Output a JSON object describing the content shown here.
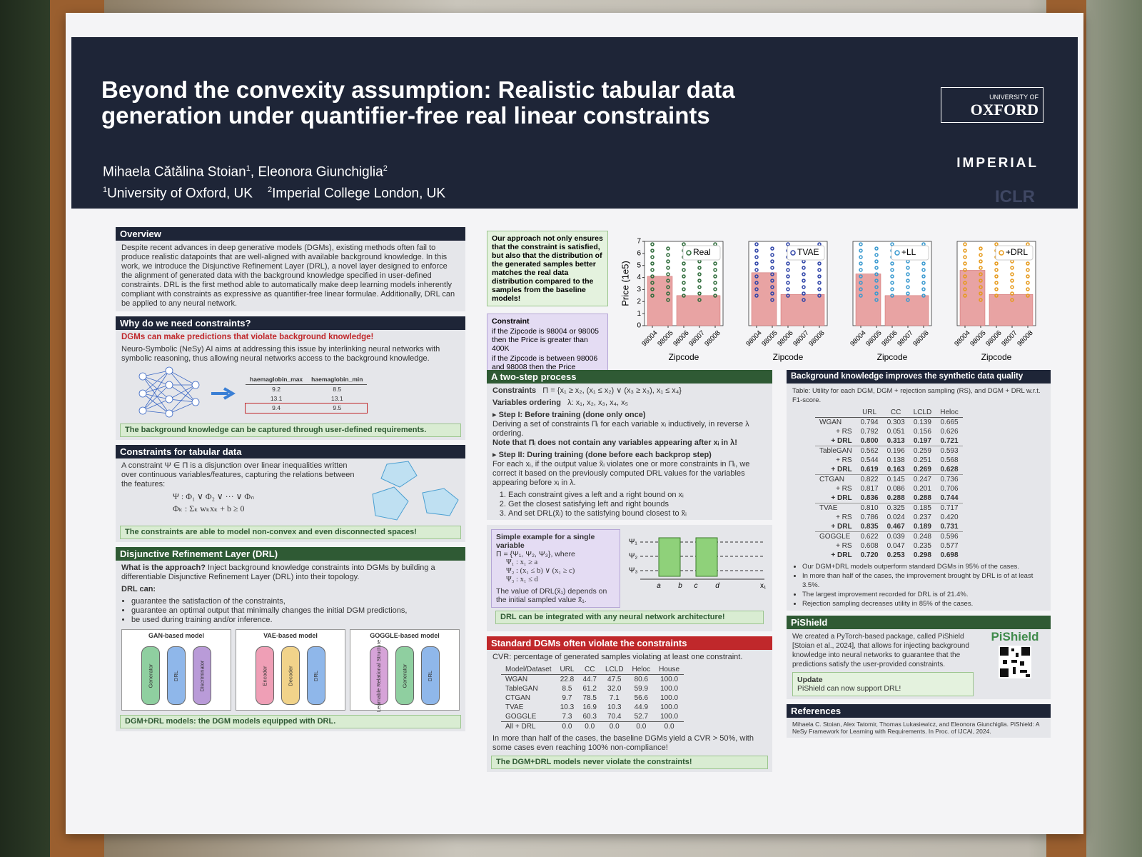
{
  "header": {
    "title": [
      "Beyond the convexity assumption: Realistic tabular data",
      "generation under quantifier-free real linear constraints"
    ],
    "authors": [
      {
        "name": "Mihaela Cătălina Stoian",
        "affil": 1
      },
      {
        "name": "Eleonora Giunchiglia",
        "affil": 2
      }
    ],
    "affiliations": [
      {
        "id": 1,
        "name": "University of Oxford, UK"
      },
      {
        "id": 2,
        "name": "Imperial College London, UK"
      }
    ],
    "logos": {
      "oxford_small": "UNIVERSITY OF",
      "oxford": "OXFORD",
      "imperial": "IMPERIAL",
      "iclr": "ICLR"
    }
  },
  "overview": {
    "heading": "Overview",
    "text": "Despite recent advances in deep generative models (DGMs), existing methods often fail to produce realistic datapoints that are well-aligned with available background knowledge. In this work, we introduce the Disjunctive Refinement Layer (DRL), a novel layer designed to enforce the alignment of generated data with the background knowledge specified in user-defined constraints. DRL is the first method able to automatically make deep learning models inherently compliant with constraints as expressive as quantifier-free linear formulae. Additionally, DRL can be applied to any neural network."
  },
  "why": {
    "heading": "Why do we need constraints?",
    "highlight": "DGMs can make predictions that violate background knowledge!",
    "text": "Neuro-Symbolic (NeSy) AI aims at addressing this issue by interlinking neural networks with symbolic reasoning, thus allowing neural networks access to the background knowledge.",
    "table": {
      "columns": [
        "haemaglobin_max",
        "haemaglobin_min"
      ],
      "rows": [
        [
          "9.2",
          "8.5"
        ],
        [
          "13.1",
          "13.1"
        ],
        [
          "9.4",
          "9.5"
        ]
      ]
    },
    "note": "The background knowledge can be captured through user-defined requirements."
  },
  "constraints": {
    "heading": "Constraints for tabular data",
    "text": "A constraint Ψ ∈ Π is a disjunction over linear inequalities written over continuous variables/features, capturing the relations between the features:",
    "formulas": [
      "Ψ : Φ₁ ∨ Φ₂ ∨ ··· ∨ Φₙ",
      "Φₖ : Σₖ wₖxₖ + b ≥ 0"
    ],
    "note": "The constraints are able to model non-convex and even disconnected spaces!"
  },
  "drl": {
    "heading": "Disjunctive Refinement Layer (DRL)",
    "question": "What is the approach?",
    "text": "Inject background knowledge constraints into DGMs by building a differentiable Disjunctive Refinement Layer (DRL) into their topology.",
    "can": "DRL can:",
    "bullets": [
      "guarantee the satisfaction of the constraints,",
      "guarantee an optimal output that minimally changes the initial DGM predictions,",
      "be used during training and/or inference."
    ],
    "models": [
      {
        "title": "GAN-based model",
        "blocks": [
          "Generator",
          "DRL",
          "Discriminator"
        ],
        "colors": [
          "#8fcfa0",
          "#8fb7ea",
          "#b99bd8"
        ]
      },
      {
        "title": "VAE-based model",
        "blocks": [
          "Encoder",
          "Decoder",
          "DRL"
        ],
        "colors": [
          "#ef9fb6",
          "#f1d38a",
          "#8fb7ea"
        ]
      },
      {
        "title": "GOGGLE-based model",
        "blocks": [
          "Learnable Relational Structure",
          "Generator",
          "DRL"
        ],
        "colors": [
          "#d6a3d8",
          "#8fcfa0",
          "#8fb7ea"
        ]
      }
    ],
    "note": "DGM+DRL models: the DGM models equipped with DRL."
  },
  "callout": "Our approach not only ensures that the constraint is satisfied, but also that the distribution of the generated samples better matches the real data distribution compared to the samples from the baseline models!",
  "constraint_box": {
    "title": "Constraint",
    "bullets": [
      "if the Zipcode is 98004 or 98005 then the Price is greater than 400K",
      "if the Zipcode is between 98006 and 98008 then the Price exceeds 225K USD."
    ]
  },
  "charts": {
    "ylabel": "Price (1e5)",
    "xlabel": "Zipcode",
    "yticks": [
      0,
      1,
      2,
      3,
      4,
      5,
      6,
      7
    ],
    "zipcodes": [
      "98004",
      "98005",
      "98006",
      "98007",
      "98008"
    ],
    "bar_color": "#e8a3a3",
    "panels": [
      {
        "name": "Real",
        "color": "#2e6b3a",
        "bars": [
          4.1,
          2.5
        ]
      },
      {
        "name": "TVAE",
        "color": "#2f44a8",
        "bars": [
          4.4,
          2.6
        ]
      },
      {
        "name": "+LL",
        "color": "#3a9ad0",
        "bars": [
          4.3,
          2.5
        ]
      },
      {
        "name": "+DRL",
        "color": "#e69a1c",
        "bars": [
          4.6,
          2.6
        ]
      }
    ]
  },
  "two_step": {
    "heading": "A two-step process",
    "constraints_label": "Constraints",
    "constraints": "Π = {x₁ ≥ x₂, (x₁ ≤ x₂) ∨ (x₃ ≥ x₃), x₁ ≤ x₄}",
    "ordering_label": "Variables ordering",
    "ordering": "λ: x₁, x₂, x₃, x₄, x₅",
    "step1_title": "Step I: Before training (done only once)",
    "step1_text": "Deriving a set of constraints Πᵢ for each variable xᵢ inductively, in reverse λ ordering.",
    "step1_note": "Note that Πᵢ does not contain any variables appearing after xᵢ in λ!",
    "step2_title": "Step II: During training (done before each backprop step)",
    "step2_text": "For each xᵢ, if the output value x̃ᵢ violates one or more constraints in Πᵢ, we correct it based on the previously computed DRL values for the variables appearing before xᵢ in λ.",
    "steps": [
      "Each constraint gives a left and a right bound on xᵢ",
      "Get the closest satisfying left and right bounds",
      "And set DRL(x̃ᵢ) to the satisfying bound closest to x̃ᵢ"
    ]
  },
  "example": {
    "title": "Simple example for a single variable",
    "lines": [
      "Π = {Ψ₁, Ψ₂, Ψ₃}, where",
      "Ψ₁ : x₁ ≥ a",
      "Ψ₂ : (x₁ ≤ b) ∨ (x₁ ≥ c)",
      "Ψ₃ : x₁ ≤ d"
    ],
    "text": "The value of DRL(x̃₁) depends on the initial sampled value x̃₁.",
    "psi": [
      "Ψ₁",
      "Ψ₂",
      "Ψ₃"
    ],
    "points": [
      "a",
      "b",
      "c",
      "d"
    ],
    "axis": "x₁",
    "note": "DRL can be integrated with any neural network architecture!"
  },
  "cvr": {
    "heading": "Standard DGMs often violate the constraints",
    "caption": "CVR: percentage of generated samples violating at least one constraint.",
    "columns": [
      "Model/Dataset",
      "URL",
      "CC",
      "LCLD",
      "Heloc",
      "House"
    ],
    "rows": [
      [
        "WGAN",
        "22.8",
        "44.7",
        "47.5",
        "80.6",
        "100.0"
      ],
      [
        "TableGAN",
        "8.5",
        "61.2",
        "32.0",
        "59.9",
        "100.0"
      ],
      [
        "CTGAN",
        "9.7",
        "78.5",
        "7.1",
        "56.6",
        "100.0"
      ],
      [
        "TVAE",
        "10.3",
        "16.9",
        "10.3",
        "44.9",
        "100.0"
      ],
      [
        "GOGGLE",
        "7.3",
        "60.3",
        "70.4",
        "52.7",
        "100.0"
      ],
      [
        "All + DRL",
        "0.0",
        "0.0",
        "0.0",
        "0.0",
        "0.0"
      ]
    ],
    "text": "In more than half of the cases, the baseline DGMs yield a CVR > 50%, with some cases even reaching 100% non-compliance!",
    "note": "The DGM+DRL models never violate the constraints!"
  },
  "utility": {
    "heading": "Background knowledge improves the synthetic data quality",
    "caption": "Table: Utility for each DGM, DGM + rejection sampling (RS), and DGM + DRL w.r.t. F1-score.",
    "columns": [
      "URL",
      "CC",
      "LCLD",
      "Heloc"
    ],
    "rows": [
      [
        "WGAN",
        "0.794",
        "0.303",
        "0.139",
        "0.665"
      ],
      [
        "+ RS",
        "0.792",
        "0.051",
        "0.156",
        "0.626"
      ],
      [
        "+ DRL",
        "0.800",
        "0.313",
        "0.197",
        "0.721"
      ],
      [
        "TableGAN",
        "0.562",
        "0.196",
        "0.259",
        "0.593"
      ],
      [
        "+ RS",
        "0.544",
        "0.138",
        "0.251",
        "0.568"
      ],
      [
        "+ DRL",
        "0.619",
        "0.163",
        "0.269",
        "0.628"
      ],
      [
        "CTGAN",
        "0.822",
        "0.145",
        "0.247",
        "0.736"
      ],
      [
        "+ RS",
        "0.817",
        "0.086",
        "0.201",
        "0.706"
      ],
      [
        "+ DRL",
        "0.836",
        "0.288",
        "0.288",
        "0.744"
      ],
      [
        "TVAE",
        "0.810",
        "0.325",
        "0.185",
        "0.717"
      ],
      [
        "+ RS",
        "0.786",
        "0.024",
        "0.237",
        "0.420"
      ],
      [
        "+ DRL",
        "0.835",
        "0.467",
        "0.189",
        "0.731"
      ],
      [
        "GOGGLE",
        "0.622",
        "0.039",
        "0.248",
        "0.596"
      ],
      [
        "+ RS",
        "0.608",
        "0.047",
        "0.235",
        "0.577"
      ],
      [
        "+ DRL",
        "0.720",
        "0.253",
        "0.298",
        "0.698"
      ]
    ],
    "bullets": [
      "Our DGM+DRL models outperform standard DGMs in 95% of the cases.",
      "In more than half of the cases, the improvement brought by DRL is of at least 3.5%.",
      "The largest improvement recorded for DRL is of 21.4%.",
      "Rejection sampling decreases utility in 85% of the cases."
    ]
  },
  "pishield": {
    "heading": "PiShield",
    "text": "We created a PyTorch-based package, called PiShield [Stoian et al., 2024], that allows for injecting background knowledge into neural networks to guarantee that the predictions satisfy the user-provided constraints.",
    "logo": "PiShield",
    "update_title": "Update",
    "update_text": "PiShield can now support DRL!"
  },
  "references": {
    "heading": "References",
    "text": "Mihaela C. Stoian, Alex Tatomir, Thomas Lukasiewicz, and Eleonora Giunchiglia. PiShield: A NeSy Framework for Learning with Requirements. In Proc. of IJCAI, 2024."
  }
}
